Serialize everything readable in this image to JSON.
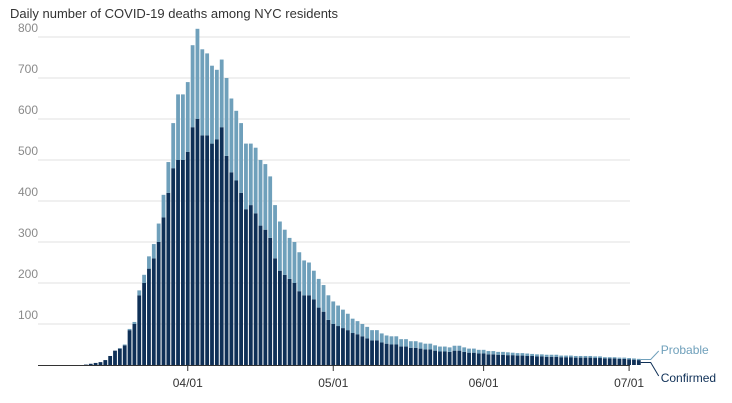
{
  "colors": {
    "confirmed": "#0f3057",
    "probable": "#6fa0bb",
    "grid": "#e2e2e2",
    "axis": "#333333"
  },
  "chart_data": {
    "type": "bar",
    "stacked": true,
    "title": "Daily number of COVID-19 deaths among NYC residents",
    "x_start": "2020-03-11",
    "x": [
      "03-11",
      "03-12",
      "03-13",
      "03-14",
      "03-15",
      "03-16",
      "03-17",
      "03-18",
      "03-19",
      "03-20",
      "03-21",
      "03-22",
      "03-23",
      "03-24",
      "03-25",
      "03-26",
      "03-27",
      "03-28",
      "03-29",
      "03-30",
      "03-31",
      "04-01",
      "04-02",
      "04-03",
      "04-04",
      "04-05",
      "04-06",
      "04-07",
      "04-08",
      "04-09",
      "04-10",
      "04-11",
      "04-12",
      "04-13",
      "04-14",
      "04-15",
      "04-16",
      "04-17",
      "04-18",
      "04-19",
      "04-20",
      "04-21",
      "04-22",
      "04-23",
      "04-24",
      "04-25",
      "04-26",
      "04-27",
      "04-28",
      "04-29",
      "04-30",
      "05-01",
      "05-02",
      "05-03",
      "05-04",
      "05-05",
      "05-06",
      "05-07",
      "05-08",
      "05-09",
      "05-10",
      "05-11",
      "05-12",
      "05-13",
      "05-14",
      "05-15",
      "05-16",
      "05-17",
      "05-18",
      "05-19",
      "05-20",
      "05-21",
      "05-22",
      "05-23",
      "05-24",
      "05-25",
      "05-26",
      "05-27",
      "05-28",
      "05-29",
      "05-30",
      "05-31",
      "06-01",
      "06-02",
      "06-03",
      "06-04",
      "06-05",
      "06-06",
      "06-07",
      "06-08",
      "06-09",
      "06-10",
      "06-11",
      "06-12",
      "06-13",
      "06-14",
      "06-15",
      "06-16",
      "06-17",
      "06-18",
      "06-19",
      "06-20",
      "06-21",
      "06-22",
      "06-23",
      "06-24",
      "06-25",
      "06-26",
      "06-27",
      "06-28",
      "06-29",
      "06-30",
      "07-01",
      "07-02",
      "07-03"
    ],
    "ylim": [
      0,
      800
    ],
    "yticks": [
      100,
      200,
      300,
      400,
      500,
      600,
      700,
      800
    ],
    "xticks": [
      {
        "date": "04-01",
        "label": "04/01"
      },
      {
        "date": "05-01",
        "label": "05/01"
      },
      {
        "date": "06-01",
        "label": "06/01"
      },
      {
        "date": "07-01",
        "label": "07/01"
      }
    ],
    "series": [
      {
        "name": "Confirmed",
        "values": [
          1,
          3,
          5,
          7,
          12,
          22,
          35,
          40,
          48,
          85,
          100,
          170,
          200,
          235,
          260,
          300,
          360,
          420,
          480,
          500,
          500,
          520,
          580,
          600,
          560,
          560,
          540,
          550,
          580,
          510,
          470,
          450,
          420,
          380,
          390,
          370,
          340,
          330,
          310,
          260,
          230,
          220,
          210,
          200,
          180,
          170,
          170,
          160,
          140,
          130,
          110,
          100,
          95,
          90,
          85,
          78,
          75,
          70,
          65,
          60,
          60,
          55,
          52,
          50,
          50,
          45,
          45,
          42,
          42,
          40,
          38,
          38,
          35,
          33,
          33,
          32,
          35,
          35,
          32,
          30,
          30,
          28,
          28,
          26,
          26,
          25,
          25,
          24,
          24,
          23,
          23,
          22,
          22,
          21,
          21,
          20,
          20,
          20,
          19,
          19,
          19,
          18,
          18,
          18,
          18,
          17,
          17,
          16,
          16,
          16,
          15,
          15,
          14,
          13,
          12
        ]
      },
      {
        "name": "Probable",
        "values": [
          0,
          0,
          0,
          0,
          0,
          0,
          0,
          1,
          2,
          3,
          5,
          12,
          20,
          30,
          35,
          45,
          55,
          75,
          110,
          160,
          160,
          170,
          200,
          220,
          210,
          200,
          190,
          170,
          165,
          190,
          180,
          170,
          170,
          160,
          150,
          160,
          160,
          160,
          150,
          130,
          120,
          110,
          100,
          100,
          95,
          85,
          80,
          70,
          70,
          65,
          60,
          55,
          50,
          45,
          40,
          35,
          32,
          30,
          28,
          25,
          25,
          22,
          20,
          20,
          20,
          18,
          18,
          16,
          16,
          15,
          14,
          14,
          13,
          12,
          12,
          11,
          12,
          12,
          11,
          10,
          10,
          9,
          9,
          8,
          8,
          7,
          7,
          7,
          6,
          6,
          6,
          6,
          5,
          5,
          5,
          5,
          5,
          5,
          4,
          4,
          4,
          4,
          4,
          4,
          4,
          4,
          4,
          3,
          3,
          3,
          3,
          3,
          3,
          3,
          3
        ]
      }
    ],
    "legend": [
      "Probable",
      "Confirmed"
    ],
    "legend_placement": "right, at end of bars",
    "grid": true
  }
}
